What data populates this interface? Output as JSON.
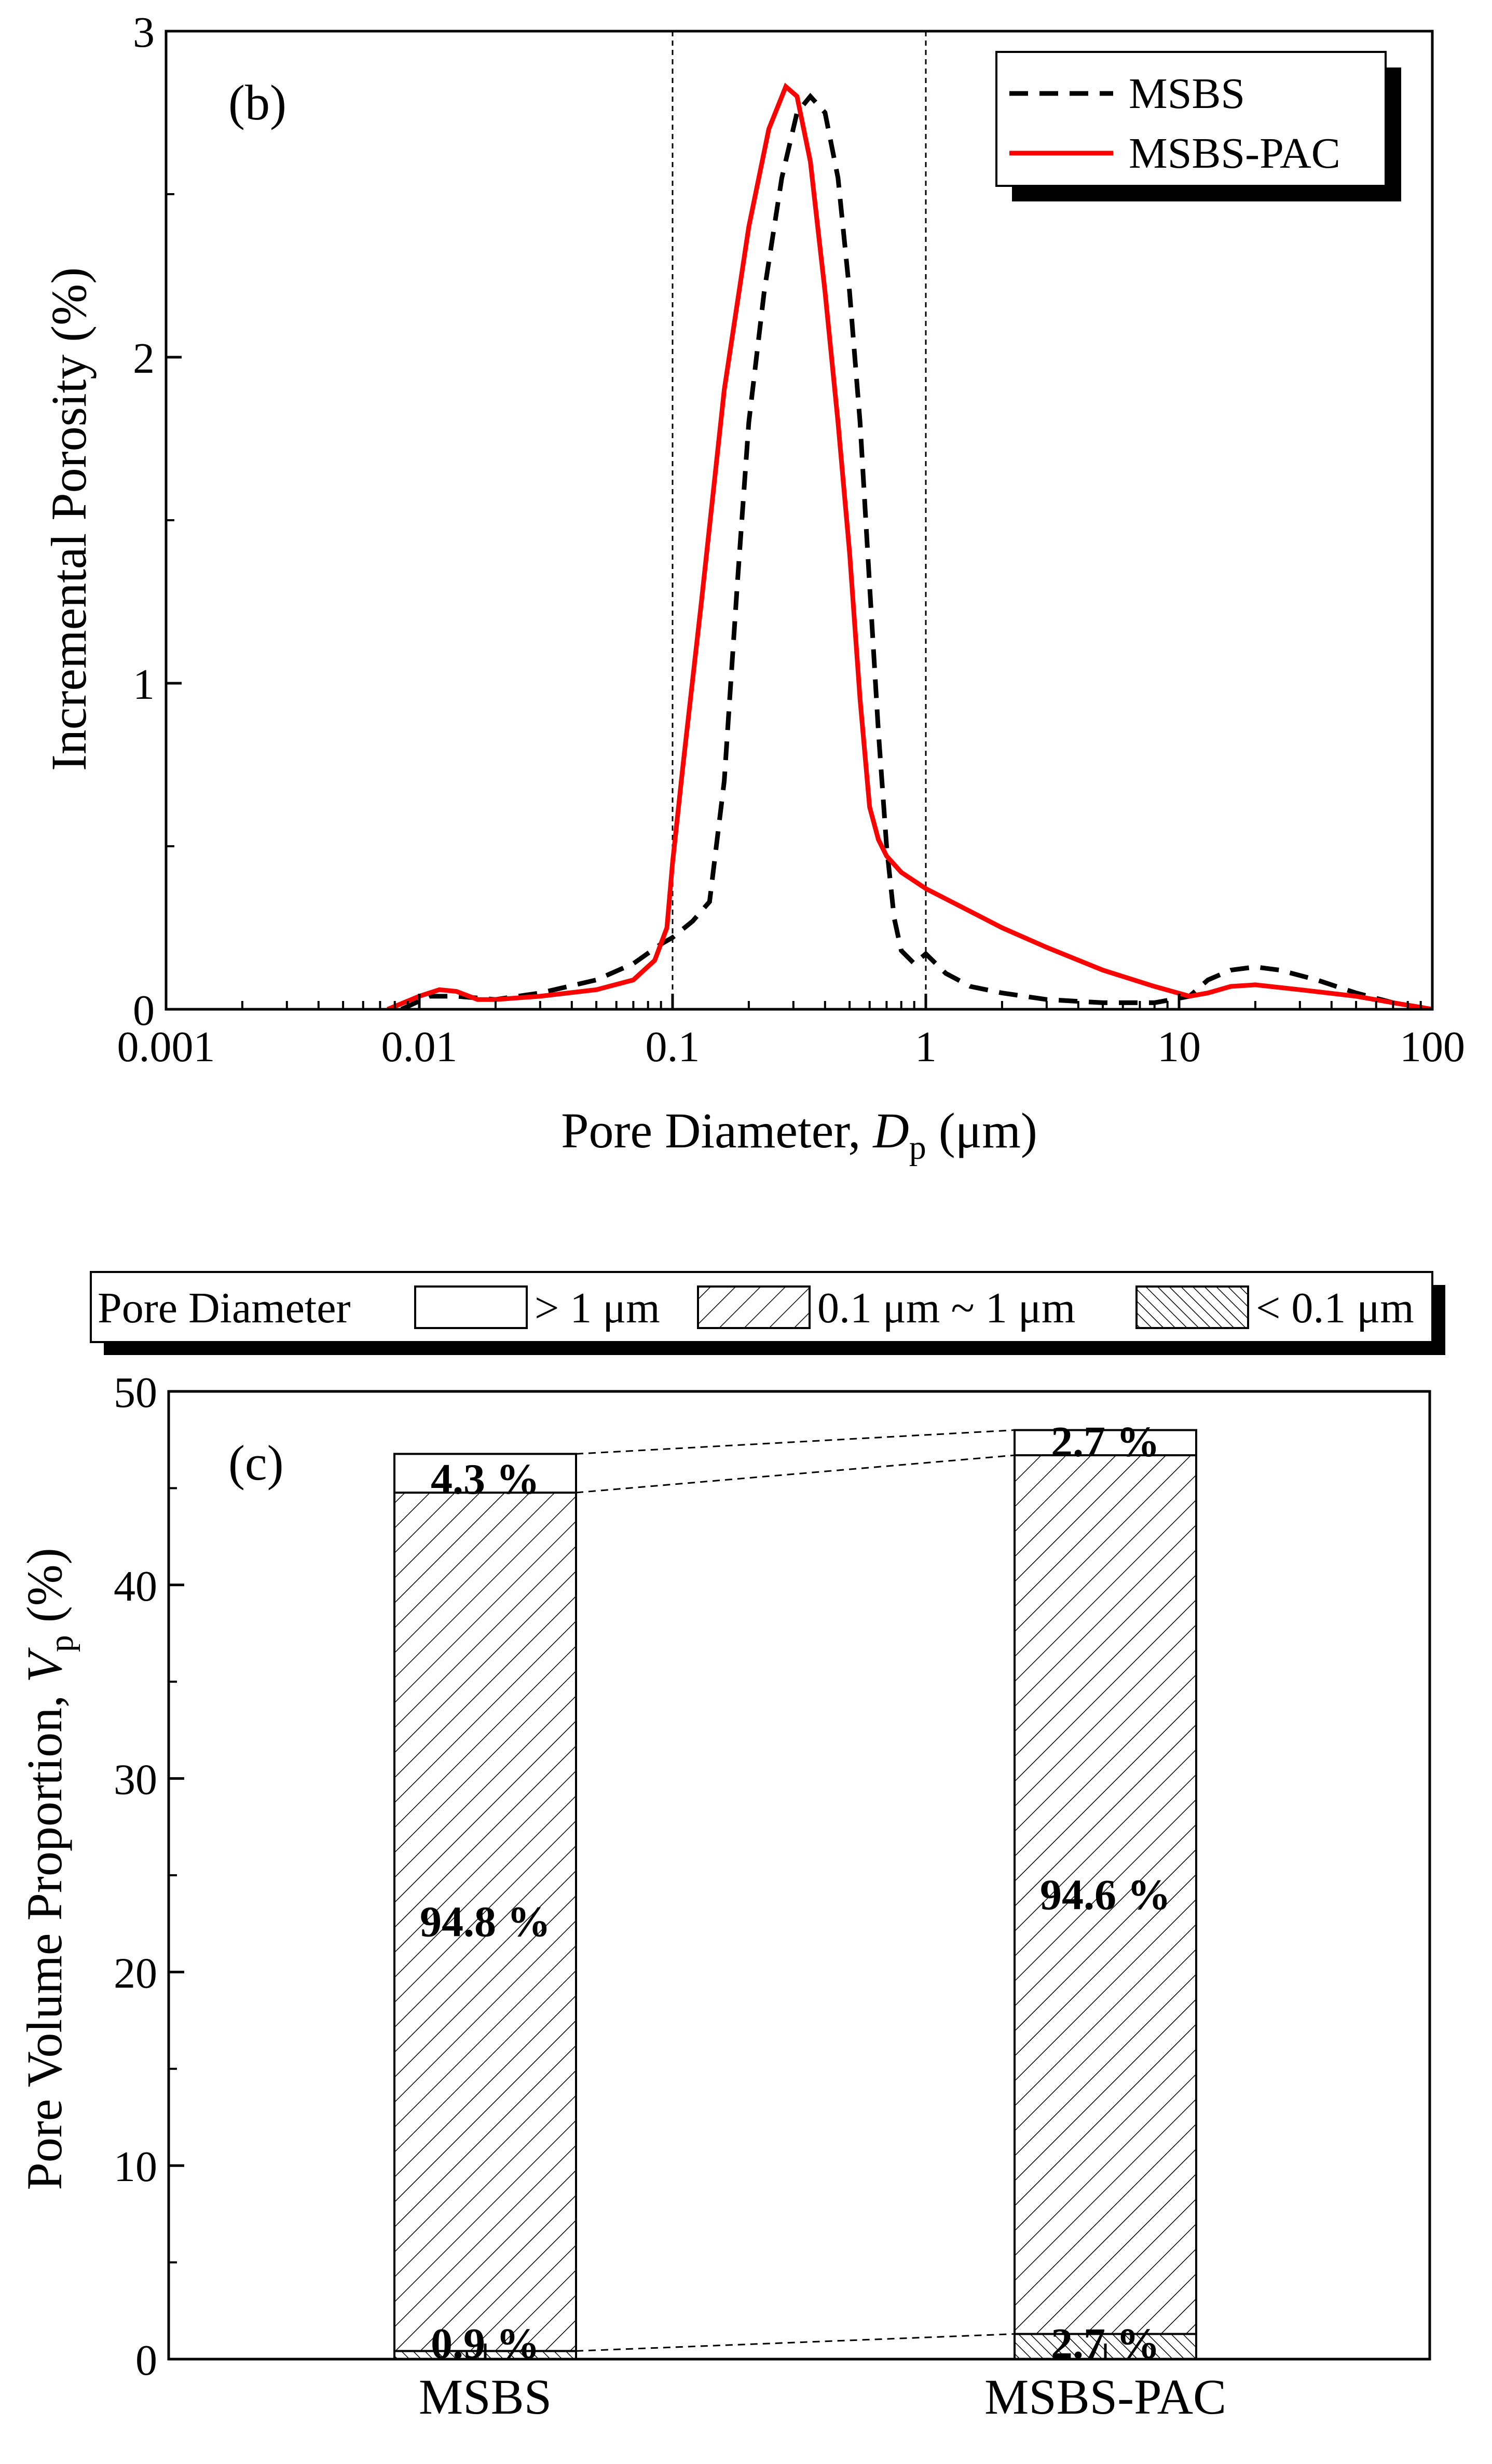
{
  "chart_data": [
    {
      "panel": "(b)",
      "type": "line",
      "xscale": "log",
      "xlim": [
        0.001,
        100
      ],
      "ylim": [
        0,
        3
      ],
      "xticks": [
        0.001,
        0.01,
        0.1,
        1,
        10,
        100
      ],
      "xtick_labels": [
        "0.001",
        "0.01",
        "0.1",
        "1",
        "10",
        "100"
      ],
      "yticks": [
        0,
        1,
        2,
        3
      ],
      "ytick_labels": [
        "0",
        "1",
        "2",
        "3"
      ],
      "xlabel_prefix": "Pore Diameter, ",
      "xlabel_var": "D",
      "xlabel_sub": "p",
      "xlabel_suffix": " (μm)",
      "ylabel": "Incremental Porosity (%)",
      "reference_lines_x": [
        0.1,
        1
      ],
      "legend_position": "top-right",
      "series": [
        {
          "name": "MSBS",
          "color": "#000000",
          "style": "dashed",
          "points": [
            [
              0.0085,
              0.0
            ],
            [
              0.011,
              0.04
            ],
            [
              0.014,
              0.04
            ],
            [
              0.02,
              0.03
            ],
            [
              0.03,
              0.05
            ],
            [
              0.05,
              0.09
            ],
            [
              0.07,
              0.14
            ],
            [
              0.09,
              0.2
            ],
            [
              0.1,
              0.22
            ],
            [
              0.12,
              0.27
            ],
            [
              0.14,
              0.33
            ],
            [
              0.16,
              0.7
            ],
            [
              0.18,
              1.3
            ],
            [
              0.2,
              1.8
            ],
            [
              0.23,
              2.2
            ],
            [
              0.27,
              2.55
            ],
            [
              0.31,
              2.75
            ],
            [
              0.35,
              2.8
            ],
            [
              0.4,
              2.75
            ],
            [
              0.45,
              2.55
            ],
            [
              0.5,
              2.2
            ],
            [
              0.55,
              1.8
            ],
            [
              0.6,
              1.3
            ],
            [
              0.65,
              0.85
            ],
            [
              0.7,
              0.5
            ],
            [
              0.75,
              0.28
            ],
            [
              0.8,
              0.18
            ],
            [
              0.9,
              0.14
            ],
            [
              1.0,
              0.17
            ],
            [
              1.2,
              0.11
            ],
            [
              1.5,
              0.07
            ],
            [
              2,
              0.05
            ],
            [
              3,
              0.03
            ],
            [
              5,
              0.02
            ],
            [
              8,
              0.02
            ],
            [
              11,
              0.04
            ],
            [
              13,
              0.09
            ],
            [
              16,
              0.12
            ],
            [
              20,
              0.13
            ],
            [
              25,
              0.12
            ],
            [
              35,
              0.09
            ],
            [
              50,
              0.05
            ],
            [
              70,
              0.02
            ],
            [
              100,
              0.0
            ]
          ]
        },
        {
          "name": "MSBS-PAC",
          "color": "#ff0000",
          "style": "solid",
          "points": [
            [
              0.0075,
              0.0
            ],
            [
              0.01,
              0.04
            ],
            [
              0.012,
              0.06
            ],
            [
              0.014,
              0.055
            ],
            [
              0.017,
              0.03
            ],
            [
              0.02,
              0.03
            ],
            [
              0.03,
              0.04
            ],
            [
              0.05,
              0.06
            ],
            [
              0.07,
              0.09
            ],
            [
              0.085,
              0.15
            ],
            [
              0.095,
              0.25
            ],
            [
              0.1,
              0.45
            ],
            [
              0.11,
              0.75
            ],
            [
              0.13,
              1.25
            ],
            [
              0.16,
              1.9
            ],
            [
              0.2,
              2.4
            ],
            [
              0.24,
              2.7
            ],
            [
              0.28,
              2.83
            ],
            [
              0.31,
              2.8
            ],
            [
              0.35,
              2.6
            ],
            [
              0.4,
              2.2
            ],
            [
              0.45,
              1.8
            ],
            [
              0.5,
              1.4
            ],
            [
              0.55,
              0.95
            ],
            [
              0.6,
              0.62
            ],
            [
              0.65,
              0.52
            ],
            [
              0.7,
              0.47
            ],
            [
              0.8,
              0.42
            ],
            [
              1.0,
              0.37
            ],
            [
              1.5,
              0.3
            ],
            [
              2,
              0.25
            ],
            [
              3,
              0.19
            ],
            [
              5,
              0.12
            ],
            [
              8,
              0.07
            ],
            [
              11,
              0.04
            ],
            [
              13,
              0.05
            ],
            [
              16,
              0.07
            ],
            [
              20,
              0.075
            ],
            [
              30,
              0.06
            ],
            [
              50,
              0.04
            ],
            [
              70,
              0.02
            ],
            [
              100,
              0.0
            ]
          ]
        }
      ]
    },
    {
      "panel": "(c)",
      "type": "bar",
      "stacked": true,
      "ylim": [
        0,
        50
      ],
      "yticks": [
        0,
        10,
        20,
        30,
        40,
        50
      ],
      "ytick_labels": [
        "0",
        "10",
        "20",
        "30",
        "40",
        "50"
      ],
      "ylabel_prefix": "Pore Volume Proportion, ",
      "ylabel_var": "V",
      "ylabel_sub": "p",
      "ylabel_suffix": " (%)",
      "categories": [
        "MSBS",
        "MSBS-PAC"
      ],
      "legend_title": "Pore Diameter",
      "legend_position": "top",
      "series": [
        {
          "name": "< 0.1 μm",
          "pattern": "dense-hatch",
          "values": [
            0.42,
            1.3
          ],
          "labels": [
            "0.9 %",
            "2.7 %"
          ]
        },
        {
          "name": "0.1 μm ~ 1 μm",
          "pattern": "sparse-hatch",
          "values": [
            44.35,
            45.4
          ],
          "labels": [
            "94.8 %",
            "94.6 %"
          ]
        },
        {
          "name": "> 1 μm",
          "pattern": "empty",
          "values": [
            2.0,
            1.3
          ],
          "labels": [
            "4.3 %",
            "2.7 %"
          ]
        }
      ],
      "legend_order": [
        "> 1 μm",
        "0.1 μm ~ 1 μm",
        "< 0.1 μm"
      ]
    }
  ]
}
